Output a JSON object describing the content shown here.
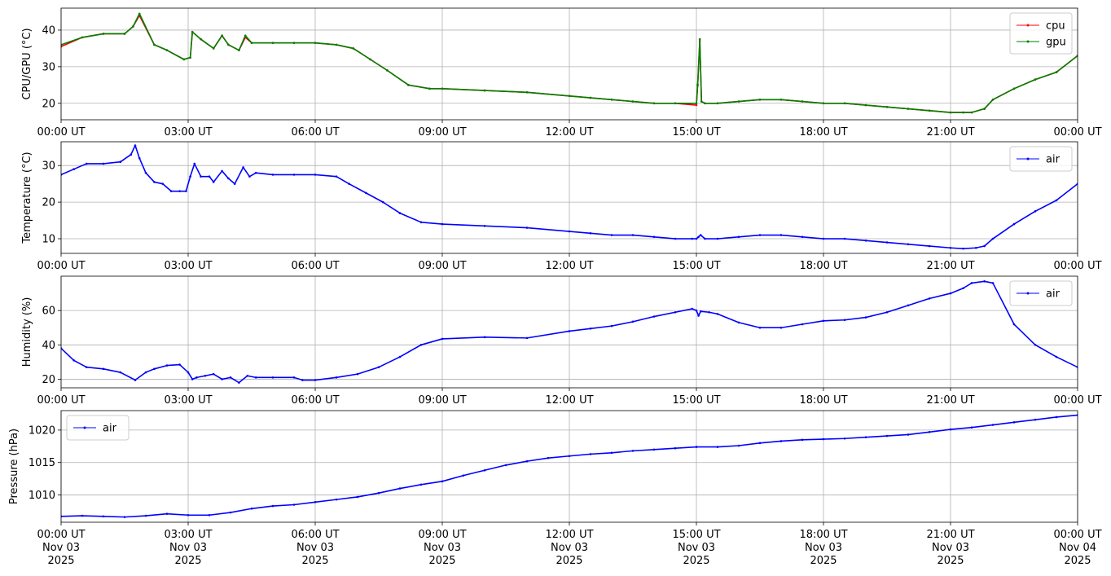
{
  "chart_data": [
    {
      "type": "line",
      "ylabel": "CPU/GPU (°C)",
      "ylim": [
        15.5,
        46
      ],
      "yticks": [
        20,
        30,
        40
      ],
      "xlim": [
        0,
        24
      ],
      "xtick_labels": [
        "00:00 UT",
        "03:00 UT",
        "06:00 UT",
        "09:00 UT",
        "12:00 UT",
        "15:00 UT",
        "18:00 UT",
        "21:00 UT",
        "00:00 UT"
      ],
      "grid": true,
      "legend": "top-right",
      "series": [
        {
          "name": "cpu",
          "color": "#ff0000",
          "x": [
            0,
            0.5,
            1,
            1.5,
            1.7,
            1.85,
            2.2,
            2.5,
            2.9,
            3.05,
            3.1,
            3.3,
            3.6,
            3.8,
            3.95,
            4.2,
            4.35,
            4.5,
            5,
            5.5,
            6,
            6.5,
            6.9,
            7.3,
            7.7,
            8.2,
            8.7,
            9,
            10,
            11,
            12,
            12.5,
            13,
            13.5,
            14,
            14.5,
            15,
            15.03,
            15.08,
            15.12,
            15.2,
            15.5,
            16,
            16.5,
            17,
            17.5,
            18,
            18.5,
            19,
            19.5,
            20,
            20.5,
            21,
            21.3,
            21.5,
            21.8,
            22,
            22.5,
            23,
            23.5,
            24
          ],
          "y": [
            35.5,
            38,
            39,
            39,
            41,
            44,
            36,
            34.5,
            32,
            32.5,
            39.5,
            37.5,
            35,
            38.5,
            36,
            34.5,
            38,
            36.5,
            36.5,
            36.5,
            36.5,
            36,
            35,
            32,
            29,
            25,
            24,
            24,
            23.5,
            23,
            22,
            21.5,
            21,
            20.5,
            20,
            20,
            19.5,
            25,
            37,
            20.5,
            20,
            20,
            20.5,
            21,
            21,
            20.5,
            20,
            20,
            19.5,
            19,
            18.5,
            18,
            17.5,
            17.5,
            17.5,
            18.5,
            21,
            24,
            26.5,
            28.5,
            33
          ]
        },
        {
          "name": "gpu",
          "color": "#008000",
          "x": [
            0,
            0.5,
            1,
            1.5,
            1.7,
            1.85,
            2.2,
            2.5,
            2.9,
            3.05,
            3.1,
            3.3,
            3.6,
            3.8,
            3.95,
            4.2,
            4.35,
            4.5,
            5,
            5.5,
            6,
            6.5,
            6.9,
            7.3,
            7.7,
            8.2,
            8.7,
            9,
            10,
            11,
            12,
            12.5,
            13,
            13.5,
            14,
            14.5,
            15,
            15.03,
            15.08,
            15.12,
            15.2,
            15.5,
            16,
            16.5,
            17,
            17.5,
            18,
            18.5,
            19,
            19.5,
            20,
            20.5,
            21,
            21.3,
            21.5,
            21.8,
            22,
            22.5,
            23,
            23.5,
            24
          ],
          "y": [
            36,
            38,
            39,
            39,
            41,
            44.5,
            36,
            34.5,
            32,
            32.5,
            39.5,
            37.5,
            35,
            38.5,
            36,
            34.5,
            38.5,
            36.5,
            36.5,
            36.5,
            36.5,
            36,
            35,
            32,
            29,
            25,
            24,
            24,
            23.5,
            23,
            22,
            21.5,
            21,
            20.5,
            20,
            20,
            20,
            25,
            37.5,
            20.5,
            20,
            20,
            20.5,
            21,
            21,
            20.5,
            20,
            20,
            19.5,
            19,
            18.5,
            18,
            17.5,
            17.5,
            17.5,
            18.5,
            21,
            24,
            26.5,
            28.5,
            33
          ]
        }
      ]
    },
    {
      "type": "line",
      "ylabel": "Temperature (°C)",
      "ylim": [
        6,
        36.5
      ],
      "yticks": [
        10,
        20,
        30
      ],
      "xlim": [
        0,
        24
      ],
      "xtick_labels": [
        "00:00 UT",
        "03:00 UT",
        "06:00 UT",
        "09:00 UT",
        "12:00 UT",
        "15:00 UT",
        "18:00 UT",
        "21:00 UT",
        "00:00 UT"
      ],
      "grid": true,
      "legend": "top-right",
      "series": [
        {
          "name": "air",
          "color": "#0000ff",
          "x": [
            0,
            0.3,
            0.6,
            1,
            1.4,
            1.65,
            1.75,
            1.85,
            2,
            2.2,
            2.4,
            2.6,
            2.8,
            2.95,
            3.05,
            3.15,
            3.3,
            3.5,
            3.6,
            3.8,
            3.95,
            4.1,
            4.3,
            4.45,
            4.6,
            5,
            5.5,
            6,
            6.5,
            6.8,
            7.2,
            7.6,
            8,
            8.5,
            9,
            10,
            11,
            12,
            12.5,
            13,
            13.5,
            14,
            14.5,
            14.9,
            15,
            15.05,
            15.1,
            15.2,
            15.5,
            16,
            16.5,
            17,
            17.5,
            18,
            18.5,
            19,
            19.5,
            20,
            20.5,
            21,
            21.3,
            21.6,
            21.8,
            22,
            22.5,
            23,
            23.5,
            24
          ],
          "y": [
            27.5,
            29,
            30.5,
            30.5,
            31,
            33,
            35.5,
            32,
            28,
            25.5,
            25,
            23,
            23,
            23,
            27,
            30.5,
            27,
            27,
            25.5,
            28.5,
            26.5,
            25,
            29.5,
            27,
            28,
            27.5,
            27.5,
            27.5,
            27,
            25,
            22.5,
            20,
            17,
            14.5,
            14,
            13.5,
            13,
            12,
            11.5,
            11,
            11,
            10.5,
            10,
            10,
            10,
            10.5,
            11,
            10,
            10,
            10.5,
            11,
            11,
            10.5,
            10,
            10,
            9.5,
            9,
            8.5,
            8,
            7.5,
            7.3,
            7.5,
            8,
            10,
            14,
            17.5,
            20.5,
            25
          ]
        }
      ]
    },
    {
      "type": "line",
      "ylabel": "Humidity (%)",
      "ylim": [
        15,
        80
      ],
      "yticks": [
        20,
        40,
        60
      ],
      "xlim": [
        0,
        24
      ],
      "xtick_labels": [
        "00:00 UT",
        "03:00 UT",
        "06:00 UT",
        "09:00 UT",
        "12:00 UT",
        "15:00 UT",
        "18:00 UT",
        "21:00 UT",
        "00:00 UT"
      ],
      "grid": true,
      "legend": "top-right",
      "series": [
        {
          "name": "air",
          "color": "#0000ff",
          "x": [
            0,
            0.3,
            0.6,
            1,
            1.4,
            1.75,
            2,
            2.2,
            2.5,
            2.8,
            3,
            3.1,
            3.2,
            3.4,
            3.6,
            3.8,
            4,
            4.2,
            4.4,
            4.6,
            5,
            5.5,
            5.7,
            6,
            6.5,
            7,
            7.5,
            8,
            8.5,
            9,
            10,
            11,
            12,
            12.5,
            13,
            13.5,
            14,
            14.5,
            14.9,
            15,
            15.05,
            15.1,
            15.3,
            15.5,
            16,
            16.5,
            17,
            17.5,
            18,
            18.5,
            19,
            19.5,
            20,
            20.5,
            21,
            21.3,
            21.5,
            21.8,
            22,
            22.5,
            23,
            23.5,
            24
          ],
          "y": [
            38,
            31,
            27,
            26,
            24,
            19.5,
            24,
            26,
            28,
            28.5,
            24,
            20,
            21,
            22,
            23,
            20,
            21,
            18,
            22,
            21,
            21,
            21,
            19.5,
            19.5,
            21,
            23,
            27,
            33,
            40,
            43.5,
            44.5,
            44,
            48,
            49.5,
            51,
            53.5,
            56.5,
            59,
            61,
            60,
            57,
            59.5,
            59,
            58,
            53,
            50,
            50,
            52,
            54,
            54.5,
            56,
            59,
            63,
            67,
            70,
            73,
            76,
            77,
            76,
            52,
            40,
            33,
            27
          ]
        }
      ]
    },
    {
      "type": "line",
      "ylabel": "Pressure (hPa)",
      "ylim": [
        1005.8,
        1023
      ],
      "yticks": [
        1010,
        1015,
        1020
      ],
      "xlim": [
        0,
        24
      ],
      "xtick_labels": [
        "00:00 UT\nNov 03\n2025",
        "03:00 UT\nNov 03\n2025",
        "06:00 UT\nNov 03\n2025",
        "09:00 UT\nNov 03\n2025",
        "12:00 UT\nNov 03\n2025",
        "15:00 UT\nNov 03\n2025",
        "18:00 UT\nNov 03\n2025",
        "21:00 UT\nNov 03\n2025",
        "00:00 UT\nNov 04\n2025"
      ],
      "grid": true,
      "legend": "top-left",
      "series": [
        {
          "name": "air",
          "color": "#0000ff",
          "x": [
            0,
            0.5,
            1,
            1.5,
            2,
            2.5,
            3,
            3.5,
            4,
            4.5,
            5,
            5.5,
            6,
            6.5,
            7,
            7.5,
            8,
            8.5,
            9,
            9.5,
            10,
            10.5,
            11,
            11.5,
            12,
            12.5,
            13,
            13.5,
            14,
            14.5,
            15,
            15.5,
            16,
            16.5,
            17,
            17.5,
            18,
            18.5,
            19,
            19.5,
            20,
            20.5,
            21,
            21.5,
            22,
            22.5,
            23,
            23.5,
            24
          ],
          "y": [
            1006.7,
            1006.8,
            1006.7,
            1006.6,
            1006.8,
            1007.1,
            1006.9,
            1006.9,
            1007.3,
            1007.9,
            1008.3,
            1008.5,
            1008.9,
            1009.3,
            1009.7,
            1010.3,
            1011,
            1011.6,
            1012.1,
            1013,
            1013.8,
            1014.6,
            1015.2,
            1015.7,
            1016,
            1016.3,
            1016.5,
            1016.8,
            1017,
            1017.2,
            1017.4,
            1017.4,
            1017.6,
            1018,
            1018.3,
            1018.5,
            1018.6,
            1018.7,
            1018.9,
            1019.1,
            1019.3,
            1019.7,
            1020.1,
            1020.4,
            1020.8,
            1021.2,
            1021.6,
            1022,
            1022.3
          ]
        }
      ]
    }
  ]
}
